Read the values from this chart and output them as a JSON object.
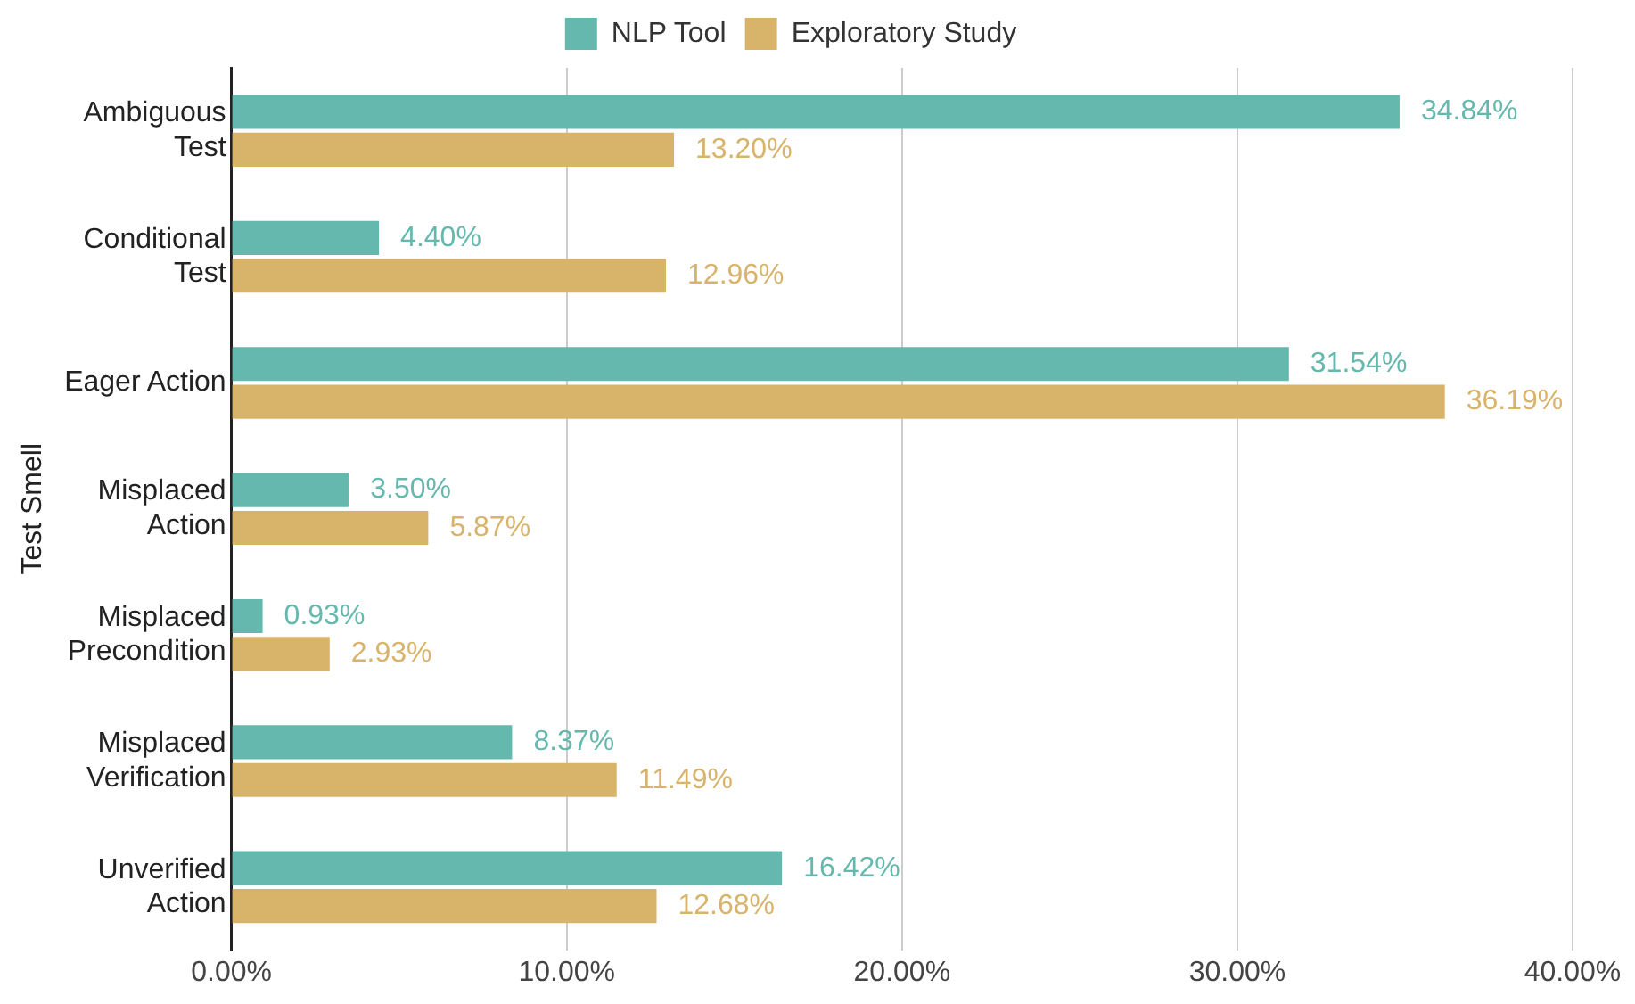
{
  "chart_data": {
    "type": "bar",
    "orientation": "horizontal",
    "ylabel": "Test Smell",
    "categories": [
      "Ambiguous\nTest",
      "Conditional\nTest",
      "Eager Action",
      "Misplaced\nAction",
      "Misplaced\nPrecondition",
      "Misplaced\nVerification",
      "Unverified\nAction"
    ],
    "series": [
      {
        "name": "NLP Tool",
        "color": "#65b8ad",
        "values": [
          34.84,
          4.4,
          31.54,
          3.5,
          0.93,
          8.37,
          16.42
        ],
        "value_labels": [
          "34.84%",
          "4.40%",
          "31.54%",
          "3.50%",
          "0.93%",
          "8.37%",
          "16.42%"
        ]
      },
      {
        "name": "Exploratory Study",
        "color": "#d8b46b",
        "values": [
          13.2,
          12.96,
          36.19,
          5.87,
          2.93,
          11.49,
          12.68
        ],
        "value_labels": [
          "13.20%",
          "12.96%",
          "36.19%",
          "5.87%",
          "2.93%",
          "11.49%",
          "12.68%"
        ]
      }
    ],
    "xlim": [
      0,
      40
    ],
    "xticks": [
      {
        "value": 0,
        "label": "0.00%"
      },
      {
        "value": 10,
        "label": "10.00%"
      },
      {
        "value": 20,
        "label": "20.00%"
      },
      {
        "value": 30,
        "label": "30.00%"
      },
      {
        "value": 40,
        "label": "40.00%"
      }
    ],
    "grid": "x",
    "legend": "top"
  }
}
